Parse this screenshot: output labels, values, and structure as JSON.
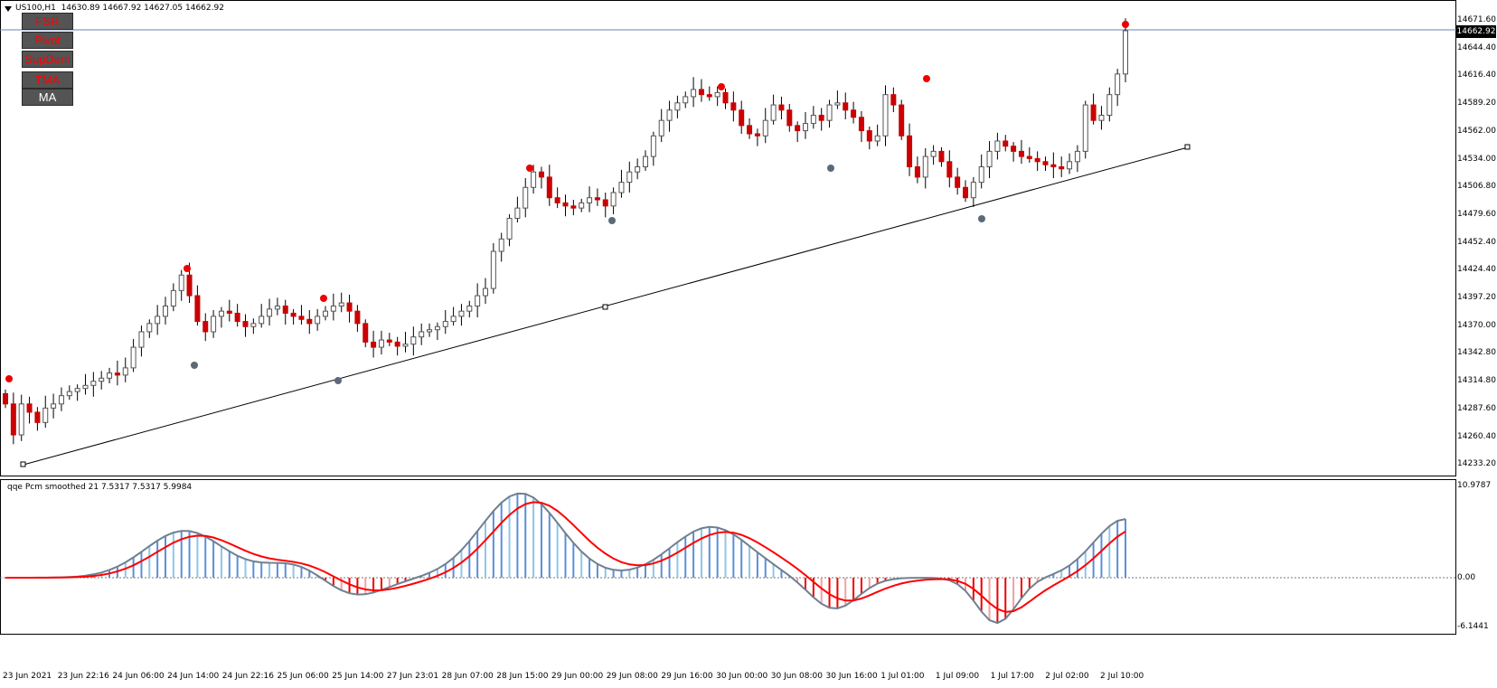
{
  "header": {
    "symbol": "US100,H1",
    "ohlc": "14630.89 14667.92 14627.05 14662.92",
    "indicator": "qqe Pcm smoothed 21 7.5317 7.5317 5.9984"
  },
  "buttons": [
    "FSR",
    "Pivot",
    "SupDem",
    "TMA",
    "MA"
  ],
  "price_box": "14662.92",
  "price_axis": [
    "14671.60",
    "14644.40",
    "14616.40",
    "14589.20",
    "14562.00",
    "14534.00",
    "14506.80",
    "14479.60",
    "14452.40",
    "14424.40",
    "14397.20",
    "14370.00",
    "14342.80",
    "14314.80",
    "14287.60",
    "14260.40",
    "14233.20"
  ],
  "indicator_axis": [
    "10.9787",
    "0.00",
    "-6.1441"
  ],
  "time_axis": [
    "23 Jun 2021",
    "23 Jun 22:16",
    "24 Jun 06:00",
    "24 Jun 14:00",
    "24 Jun 22:16",
    "25 Jun 06:00",
    "25 Jun 14:00",
    "27 Jun 23:01",
    "28 Jun 07:00",
    "28 Jun 15:00",
    "29 Jun 00:00",
    "29 Jun 08:00",
    "29 Jun 16:00",
    "30 Jun 00:00",
    "30 Jun 08:00",
    "30 Jun 16:00",
    "1 Jul 01:00",
    "1 Jul 09:00",
    "1 Jul 17:00",
    "2 Jul 02:00",
    "2 Jul 10:00"
  ],
  "colors": {
    "bull": "#555555",
    "bear": "#cc0000",
    "dot_high": "#ee0000",
    "dot_low": "#5b6a78",
    "qqe_line": "#ff0000",
    "qqe_fast": "#708090",
    "bar_pos_dark": "#5b8fd8",
    "bar_pos_light": "#8fc6e6",
    "bar_neg_dark": "#ee0000",
    "bar_neg_light": "#f2a0a0"
  },
  "chart_data": {
    "type": "candlestick",
    "series": [
      {
        "name": "US100,H1",
        "close": [
          14300,
          14270,
          14300,
          14292,
          14282,
          14296,
          14300,
          14308,
          14312,
          14315,
          14318,
          14322,
          14325,
          14330,
          14328,
          14335,
          14355,
          14370,
          14378,
          14385,
          14395,
          14410,
          14425,
          14405,
          14380,
          14370,
          14385,
          14390,
          14388,
          14380,
          14375,
          14378,
          14385,
          14392,
          14395,
          14388,
          14385,
          14382,
          14378,
          14385,
          14390,
          14395,
          14398,
          14390,
          14378,
          14360,
          14355,
          14362,
          14360,
          14356,
          14358,
          14365,
          14370,
          14372,
          14375,
          14380,
          14385,
          14390,
          14395,
          14405,
          14412,
          14448,
          14460,
          14480,
          14490,
          14510,
          14525,
          14520,
          14500,
          14495,
          14492,
          14490,
          14495,
          14500,
          14498,
          14492,
          14505,
          14515,
          14525,
          14530,
          14540,
          14560,
          14575,
          14585,
          14592,
          14598,
          14605,
          14600,
          14598,
          14602,
          14592,
          14585,
          14570,
          14562,
          14560,
          14575,
          14590,
          14585,
          14570,
          14565,
          14572,
          14580,
          14575,
          14590,
          14592,
          14585,
          14578,
          14565,
          14555,
          14560,
          14600,
          14590,
          14560,
          14530,
          14520,
          14540,
          14545,
          14535,
          14520,
          14510,
          14500,
          14515,
          14530,
          14545,
          14555,
          14550,
          14545,
          14540,
          14538,
          14535,
          14532,
          14530,
          14528,
          14535,
          14545,
          14590,
          14575,
          14580,
          14600,
          14620,
          14662
        ]
      }
    ],
    "ylim": [
      14233.2,
      14671.6
    ]
  }
}
